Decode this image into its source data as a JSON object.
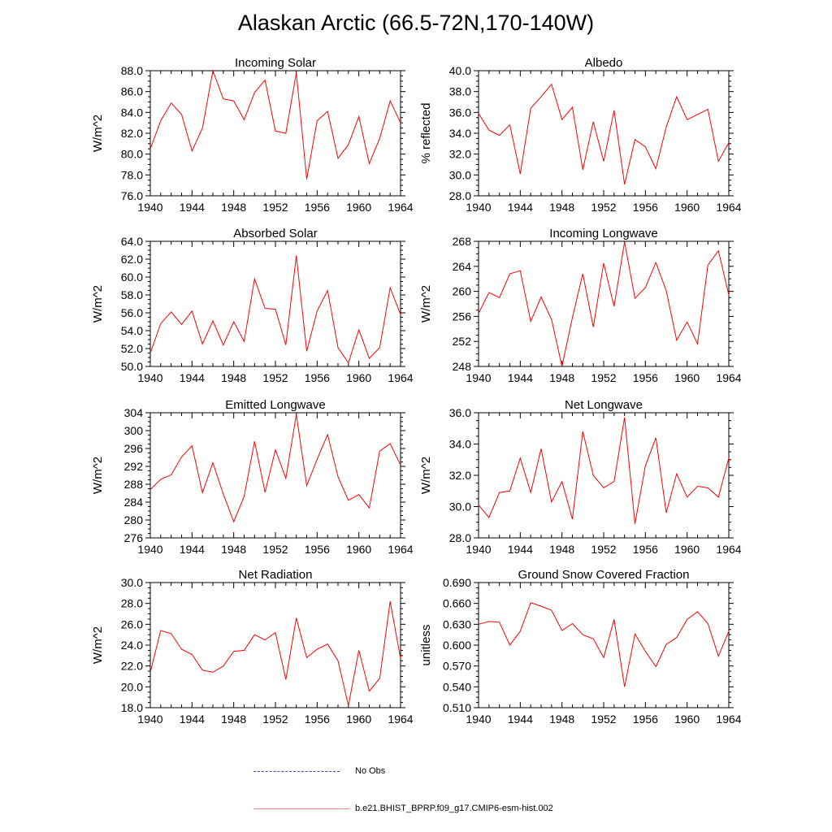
{
  "title": "Alaskan Arctic (66.5-72N,170-140W)",
  "colors": {
    "model": "#ff0000",
    "obs": "#4444aa",
    "axis": "#000000"
  },
  "legend": {
    "obs_label": "No Obs",
    "model_label": "b.e21.BHIST_BPRP.f09_g17.CMIP6-esm-hist.002"
  },
  "chart_data": [
    {
      "type": "line",
      "title": "Incoming Solar",
      "ylabel": "W/m^2",
      "x": [
        1940,
        1941,
        1942,
        1943,
        1944,
        1945,
        1946,
        1947,
        1948,
        1949,
        1950,
        1951,
        1952,
        1953,
        1954,
        1955,
        1956,
        1957,
        1958,
        1959,
        1960,
        1961,
        1962,
        1963,
        1964
      ],
      "values": [
        80.5,
        83.2,
        84.9,
        83.8,
        80.3,
        82.5,
        88.0,
        85.3,
        85.1,
        83.3,
        85.9,
        87.1,
        82.2,
        82.0,
        87.8,
        77.6,
        83.2,
        84.1,
        79.6,
        80.9,
        83.6,
        79.1,
        81.5,
        85.1,
        83.0
      ],
      "xlim": [
        1940,
        1964
      ],
      "ylim": [
        76,
        88
      ],
      "xticks": [
        "1940",
        "1944",
        "1948",
        "1952",
        "1956",
        "1960",
        "1964"
      ],
      "yticks": [
        "76.0",
        "78.0",
        "80.0",
        "82.0",
        "84.0",
        "86.0",
        "88.0"
      ]
    },
    {
      "type": "line",
      "title": "Albedo",
      "ylabel": "% reflected",
      "x": [
        1940,
        1941,
        1942,
        1943,
        1944,
        1945,
        1946,
        1947,
        1948,
        1949,
        1950,
        1951,
        1952,
        1953,
        1954,
        1955,
        1956,
        1957,
        1958,
        1959,
        1960,
        1961,
        1962,
        1963,
        1964
      ],
      "values": [
        35.9,
        34.3,
        33.8,
        34.8,
        30.1,
        36.4,
        37.5,
        38.7,
        35.3,
        36.5,
        30.5,
        35.1,
        31.3,
        36.2,
        29.1,
        33.4,
        32.7,
        30.6,
        34.6,
        37.5,
        35.3,
        35.8,
        36.3,
        31.3,
        33.1
      ],
      "xlim": [
        1940,
        1964
      ],
      "ylim": [
        28,
        40
      ],
      "xticks": [
        "1940",
        "1944",
        "1948",
        "1952",
        "1956",
        "1960",
        "1964"
      ],
      "yticks": [
        "28.0",
        "30.0",
        "32.0",
        "34.0",
        "36.0",
        "38.0",
        "40.0"
      ]
    },
    {
      "type": "line",
      "title": "Absorbed Solar",
      "ylabel": "W/m^2",
      "x": [
        1940,
        1941,
        1942,
        1943,
        1944,
        1945,
        1946,
        1947,
        1948,
        1949,
        1950,
        1951,
        1952,
        1953,
        1954,
        1955,
        1956,
        1957,
        1958,
        1959,
        1960,
        1961,
        1962,
        1963,
        1964
      ],
      "values": [
        51.5,
        54.8,
        56.1,
        54.7,
        56.2,
        52.5,
        55.1,
        52.4,
        55.0,
        52.8,
        59.8,
        56.5,
        56.4,
        52.4,
        62.4,
        51.7,
        56.2,
        58.5,
        52.1,
        50.4,
        54.1,
        50.9,
        52.1,
        58.8,
        55.8
      ],
      "xlim": [
        1940,
        1964
      ],
      "ylim": [
        50,
        64
      ],
      "xticks": [
        "1940",
        "1944",
        "1948",
        "1952",
        "1956",
        "1960",
        "1964"
      ],
      "yticks": [
        "50.0",
        "52.0",
        "54.0",
        "56.0",
        "58.0",
        "60.0",
        "62.0",
        "64.0"
      ]
    },
    {
      "type": "line",
      "title": "Incoming Longwave",
      "ylabel": "W/m^2",
      "x": [
        1940,
        1941,
        1942,
        1943,
        1944,
        1945,
        1946,
        1947,
        1948,
        1949,
        1950,
        1951,
        1952,
        1953,
        1954,
        1955,
        1956,
        1957,
        1958,
        1959,
        1960,
        1961,
        1962,
        1963,
        1964
      ],
      "values": [
        256.5,
        259.8,
        259.0,
        262.8,
        263.3,
        255.2,
        259.1,
        255.5,
        248.0,
        255.8,
        262.8,
        254.3,
        264.5,
        257.6,
        267.9,
        258.9,
        260.6,
        264.6,
        260.1,
        252.2,
        255.1,
        251.6,
        264.2,
        266.5,
        259.4
      ],
      "xlim": [
        1940,
        1964
      ],
      "ylim": [
        248,
        268
      ],
      "xticks": [
        "1940",
        "1944",
        "1948",
        "1952",
        "1956",
        "1960",
        "1964"
      ],
      "yticks": [
        "248",
        "252",
        "256",
        "260",
        "264",
        "268"
      ]
    },
    {
      "type": "line",
      "title": "Emitted Longwave",
      "ylabel": "W/m^2",
      "x": [
        1940,
        1941,
        1942,
        1943,
        1944,
        1945,
        1946,
        1947,
        1948,
        1949,
        1950,
        1951,
        1952,
        1953,
        1954,
        1955,
        1956,
        1957,
        1958,
        1959,
        1960,
        1961,
        1962,
        1963,
        1964
      ],
      "values": [
        286.8,
        289.1,
        290.1,
        294.1,
        296.6,
        286.1,
        292.8,
        285.8,
        279.6,
        285.3,
        297.6,
        286.2,
        295.7,
        289.3,
        303.6,
        287.7,
        293.6,
        299.1,
        289.7,
        284.4,
        285.7,
        282.7,
        295.4,
        297.1,
        292.3
      ],
      "xlim": [
        1940,
        1964
      ],
      "ylim": [
        276,
        304
      ],
      "xticks": [
        "1940",
        "1944",
        "1948",
        "1952",
        "1956",
        "1960",
        "1964"
      ],
      "yticks": [
        "276",
        "280",
        "284",
        "288",
        "292",
        "296",
        "300",
        "304"
      ]
    },
    {
      "type": "line",
      "title": "Net Longwave",
      "ylabel": "W/m^2",
      "x": [
        1940,
        1941,
        1942,
        1943,
        1944,
        1945,
        1946,
        1947,
        1948,
        1949,
        1950,
        1951,
        1952,
        1953,
        1954,
        1955,
        1956,
        1957,
        1958,
        1959,
        1960,
        1961,
        1962,
        1963,
        1964
      ],
      "values": [
        30.1,
        29.3,
        30.9,
        31.0,
        33.1,
        30.9,
        33.7,
        30.3,
        31.6,
        29.2,
        34.8,
        32.0,
        31.2,
        31.6,
        35.7,
        28.9,
        32.6,
        34.4,
        29.6,
        32.1,
        30.6,
        31.3,
        31.2,
        30.6,
        33.1
      ],
      "xlim": [
        1940,
        1964
      ],
      "ylim": [
        28,
        36
      ],
      "xticks": [
        "1940",
        "1944",
        "1948",
        "1952",
        "1956",
        "1960",
        "1964"
      ],
      "yticks": [
        "28.0",
        "30.0",
        "32.0",
        "34.0",
        "36.0"
      ]
    },
    {
      "type": "line",
      "title": "Net Radiation",
      "ylabel": "W/m^2",
      "x": [
        1940,
        1941,
        1942,
        1943,
        1944,
        1945,
        1946,
        1947,
        1948,
        1949,
        1950,
        1951,
        1952,
        1953,
        1954,
        1955,
        1956,
        1957,
        1958,
        1959,
        1960,
        1961,
        1962,
        1963,
        1964
      ],
      "values": [
        21.4,
        25.4,
        25.1,
        23.6,
        23.1,
        21.6,
        21.4,
        22.0,
        23.4,
        23.5,
        25.0,
        24.5,
        25.2,
        20.7,
        26.6,
        22.8,
        23.6,
        24.1,
        22.5,
        18.2,
        23.5,
        19.6,
        20.8,
        28.2,
        22.7
      ],
      "xlim": [
        1940,
        1964
      ],
      "ylim": [
        18,
        30
      ],
      "xticks": [
        "1940",
        "1944",
        "1948",
        "1952",
        "1956",
        "1960",
        "1964"
      ],
      "yticks": [
        "18.0",
        "20.0",
        "22.0",
        "24.0",
        "26.0",
        "28.0",
        "30.0"
      ]
    },
    {
      "type": "line",
      "title": "Ground Snow Covered Fraction",
      "ylabel": "unitless",
      "x": [
        1940,
        1941,
        1942,
        1943,
        1944,
        1945,
        1946,
        1947,
        1948,
        1949,
        1950,
        1951,
        1952,
        1953,
        1954,
        1955,
        1956,
        1957,
        1958,
        1959,
        1960,
        1961,
        1962,
        1963,
        1964
      ],
      "values": [
        0.63,
        0.634,
        0.633,
        0.6,
        0.62,
        0.661,
        0.656,
        0.65,
        0.621,
        0.631,
        0.615,
        0.609,
        0.582,
        0.637,
        0.54,
        0.616,
        0.591,
        0.569,
        0.601,
        0.611,
        0.637,
        0.648,
        0.631,
        0.584,
        0.62
      ],
      "xlim": [
        1940,
        1964
      ],
      "ylim": [
        0.51,
        0.69
      ],
      "xticks": [
        "1940",
        "1944",
        "1948",
        "1952",
        "1956",
        "1960",
        "1964"
      ],
      "yticks": [
        "0.510",
        "0.540",
        "0.570",
        "0.600",
        "0.630",
        "0.660",
        "0.690"
      ]
    }
  ]
}
